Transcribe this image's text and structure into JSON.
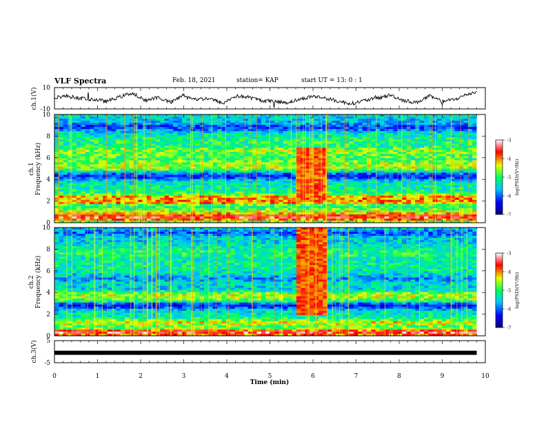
{
  "header": {
    "title": "VLF Spectra",
    "date": "Feb. 18, 2021",
    "station": "station= KAP",
    "start_ut": "start  UT =   13: 0  : 1"
  },
  "chart_data": [
    {
      "type": "line",
      "panel": "ch1-waveform",
      "ylabel": "ch.1(V)",
      "ylim": [
        -10,
        10
      ],
      "yticks": [
        "10",
        "-10"
      ],
      "xlim": [
        0,
        10
      ],
      "series": [
        {
          "color": "#000000",
          "x": [
            0,
            0.3,
            0.6,
            0.9,
            1.2,
            1.5,
            1.8,
            2.1,
            2.4,
            2.7,
            3.0,
            3.3,
            3.6,
            3.9,
            4.2,
            4.5,
            4.8,
            5.1,
            5.4,
            5.7,
            6.0,
            6.3,
            6.6,
            6.9,
            7.2,
            7.5,
            7.8,
            8.1,
            8.4,
            8.7,
            9.0,
            9.3,
            9.6,
            9.8
          ],
          "y": [
            1,
            2,
            0,
            -1,
            -3,
            1,
            5,
            -2,
            1,
            -4,
            3,
            -1,
            0,
            -5,
            2,
            1,
            -2,
            -3,
            -4,
            -1,
            2,
            0,
            -3,
            -5,
            -2,
            0,
            3,
            -2,
            -4,
            2,
            -3,
            -1,
            4,
            6
          ]
        }
      ]
    },
    {
      "type": "heatmap",
      "panel": "ch1-spectrogram",
      "ylabel": "ch.1\nFrequency  (kHz)",
      "xlim": [
        0,
        10
      ],
      "ylim": [
        0,
        10
      ],
      "yticks": [
        "0",
        "2",
        "4",
        "6",
        "8",
        "10"
      ],
      "colorbar": {
        "label": "log(PSD)(V²/Hz)",
        "range": [
          -7,
          -3
        ],
        "ticks": [
          "-3",
          "-4",
          "-5",
          "-6",
          "-7"
        ]
      },
      "burst_interval_min": [
        5.6,
        6.3
      ],
      "burst_band_khz": [
        1.9,
        7.0
      ],
      "bands_khz": [
        {
          "f": 0.5,
          "level": -3.4
        },
        {
          "f": 1.0,
          "level": -4.6
        },
        {
          "f": 2.0,
          "level": -4.0
        },
        {
          "f": 2.3,
          "level": -4.2
        },
        {
          "f": 3.0,
          "level": -5.2
        },
        {
          "f": 4.3,
          "level": -6.3
        },
        {
          "f": 5.2,
          "level": -4.5
        },
        {
          "f": 5.5,
          "level": -4.8
        },
        {
          "f": 6.2,
          "level": -4.9
        },
        {
          "f": 6.6,
          "level": -4.6
        },
        {
          "f": 7.5,
          "level": -5.0
        },
        {
          "f": 8.0,
          "level": -5.3
        },
        {
          "f": 8.8,
          "level": -6.2
        },
        {
          "f": 9.5,
          "level": -5.6
        }
      ]
    },
    {
      "type": "heatmap",
      "panel": "ch2-spectrogram",
      "ylabel": "ch.2\nFrequency  (kHz)",
      "xlim": [
        0,
        10
      ],
      "ylim": [
        0,
        10
      ],
      "yticks": [
        "0",
        "2",
        "4",
        "6",
        "8",
        "10"
      ],
      "colorbar": {
        "label": "log(PSD)(V²/Hz)",
        "range": [
          -7,
          -3
        ],
        "ticks": [
          "-3",
          "-4",
          "-5",
          "-6",
          "-7"
        ]
      },
      "burst_interval_min": [
        5.6,
        6.3
      ],
      "burst_band_khz": [
        1.9,
        10.0
      ],
      "bands_khz": [
        {
          "f": 0.3,
          "level": -3.5
        },
        {
          "f": 1.2,
          "level": -4.4
        },
        {
          "f": 2.2,
          "level": -5.3
        },
        {
          "f": 2.8,
          "level": -6.4
        },
        {
          "f": 3.4,
          "level": -4.7
        },
        {
          "f": 3.7,
          "level": -4.5
        },
        {
          "f": 4.4,
          "level": -5.5
        },
        {
          "f": 5.3,
          "level": -5.8
        },
        {
          "f": 6.5,
          "level": -5.2
        },
        {
          "f": 7.6,
          "level": -5.0
        },
        {
          "f": 8.8,
          "level": -5.5
        },
        {
          "f": 9.5,
          "level": -6.0
        }
      ]
    },
    {
      "type": "line",
      "panel": "ch3-waveform",
      "ylabel": "ch.3(V)",
      "ylim": [
        -5,
        5
      ],
      "yticks": [
        "5",
        "-5"
      ],
      "xlim": [
        0,
        10
      ],
      "series": [
        {
          "color": "#000000",
          "x": [
            0,
            9.8
          ],
          "y": [
            -0.5,
            -0.5
          ]
        }
      ]
    }
  ],
  "xaxis": {
    "label": "Time  (min)",
    "ticks": [
      "0",
      "1",
      "2",
      "3",
      "4",
      "5",
      "6",
      "7",
      "8",
      "9",
      "10"
    ]
  }
}
